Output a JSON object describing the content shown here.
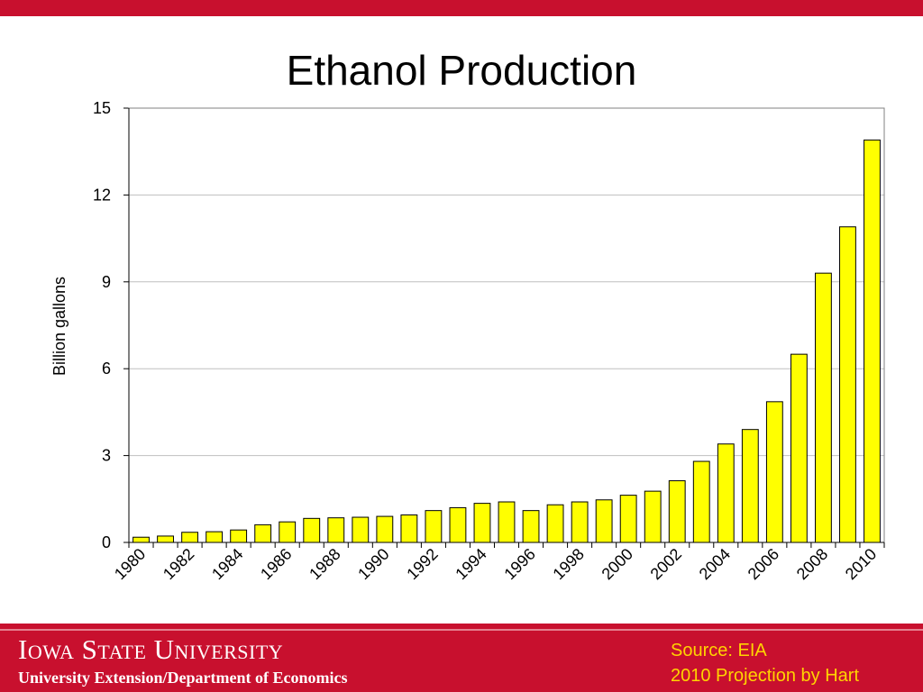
{
  "slide": {
    "title": "Ethanol Production"
  },
  "footer": {
    "university": "Iowa State University",
    "department": "University Extension/Department of Economics",
    "source_line1": "Source: EIA",
    "source_line2": "2010 Projection by Hart"
  },
  "colors": {
    "band": "#c8102e",
    "bar_fill": "#ffff00",
    "bar_stroke": "#000000",
    "source_text": "#ffd400"
  },
  "chart_data": {
    "type": "bar",
    "title": "Ethanol Production",
    "xlabel": "",
    "ylabel": "Billion gallons",
    "ylim": [
      0,
      15
    ],
    "yticks": [
      0,
      3,
      6,
      9,
      12,
      15
    ],
    "grid": true,
    "legend": "none",
    "categories": [
      "1980",
      "1981",
      "1982",
      "1983",
      "1984",
      "1985",
      "1986",
      "1987",
      "1988",
      "1989",
      "1990",
      "1991",
      "1992",
      "1993",
      "1994",
      "1995",
      "1996",
      "1997",
      "1998",
      "1999",
      "2000",
      "2001",
      "2002",
      "2003",
      "2004",
      "2005",
      "2006",
      "2007",
      "2008",
      "2009",
      "2010"
    ],
    "x_tick_labels": [
      "1980",
      "1982",
      "1984",
      "1986",
      "1988",
      "1990",
      "1992",
      "1994",
      "1996",
      "1998",
      "2000",
      "2002",
      "2004",
      "2006",
      "2008",
      "2010"
    ],
    "values": [
      0.18,
      0.22,
      0.35,
      0.37,
      0.43,
      0.61,
      0.71,
      0.83,
      0.85,
      0.87,
      0.9,
      0.95,
      1.1,
      1.2,
      1.35,
      1.4,
      1.1,
      1.3,
      1.4,
      1.47,
      1.63,
      1.77,
      2.13,
      2.8,
      3.4,
      3.9,
      4.86,
      6.5,
      9.3,
      10.9,
      13.9
    ]
  }
}
